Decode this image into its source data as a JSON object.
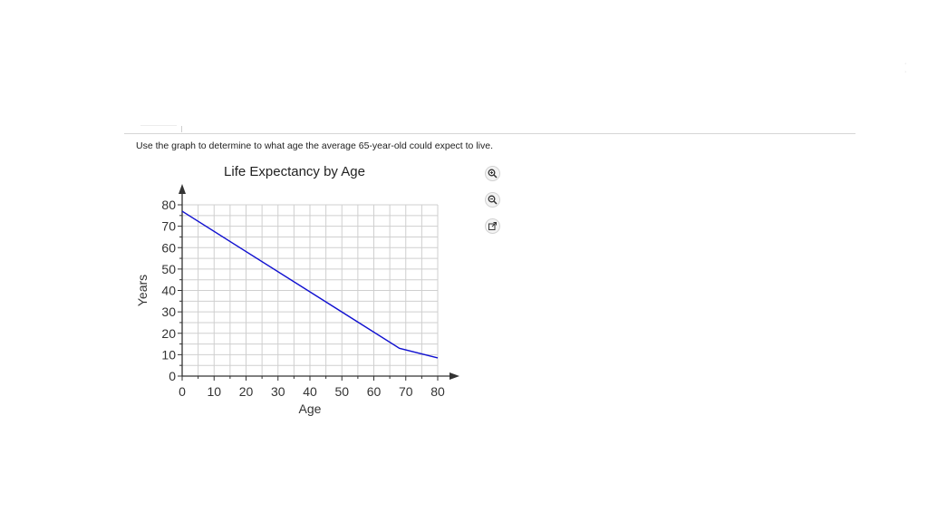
{
  "question": "Use the graph to determine to what age the average 65-year-old could expect to live.",
  "toolbar": {
    "zoom_in_icon": "zoom-in-icon",
    "zoom_out_icon": "zoom-out-icon",
    "popout_icon": "external-link-icon"
  },
  "chart_data": {
    "type": "line",
    "title": "Life Expectancy by Age",
    "xlabel": "Age",
    "ylabel": "Years",
    "xlim": [
      0,
      80
    ],
    "ylim": [
      0,
      80
    ],
    "x_ticks": [
      0,
      10,
      20,
      30,
      40,
      50,
      60,
      70,
      80
    ],
    "y_ticks": [
      0,
      10,
      20,
      30,
      40,
      50,
      60,
      70,
      80
    ],
    "grid": true,
    "line_color": "#1010d0",
    "series": [
      {
        "x": [
          0,
          68,
          80
        ],
        "y": [
          77,
          13,
          8.5
        ]
      }
    ]
  }
}
